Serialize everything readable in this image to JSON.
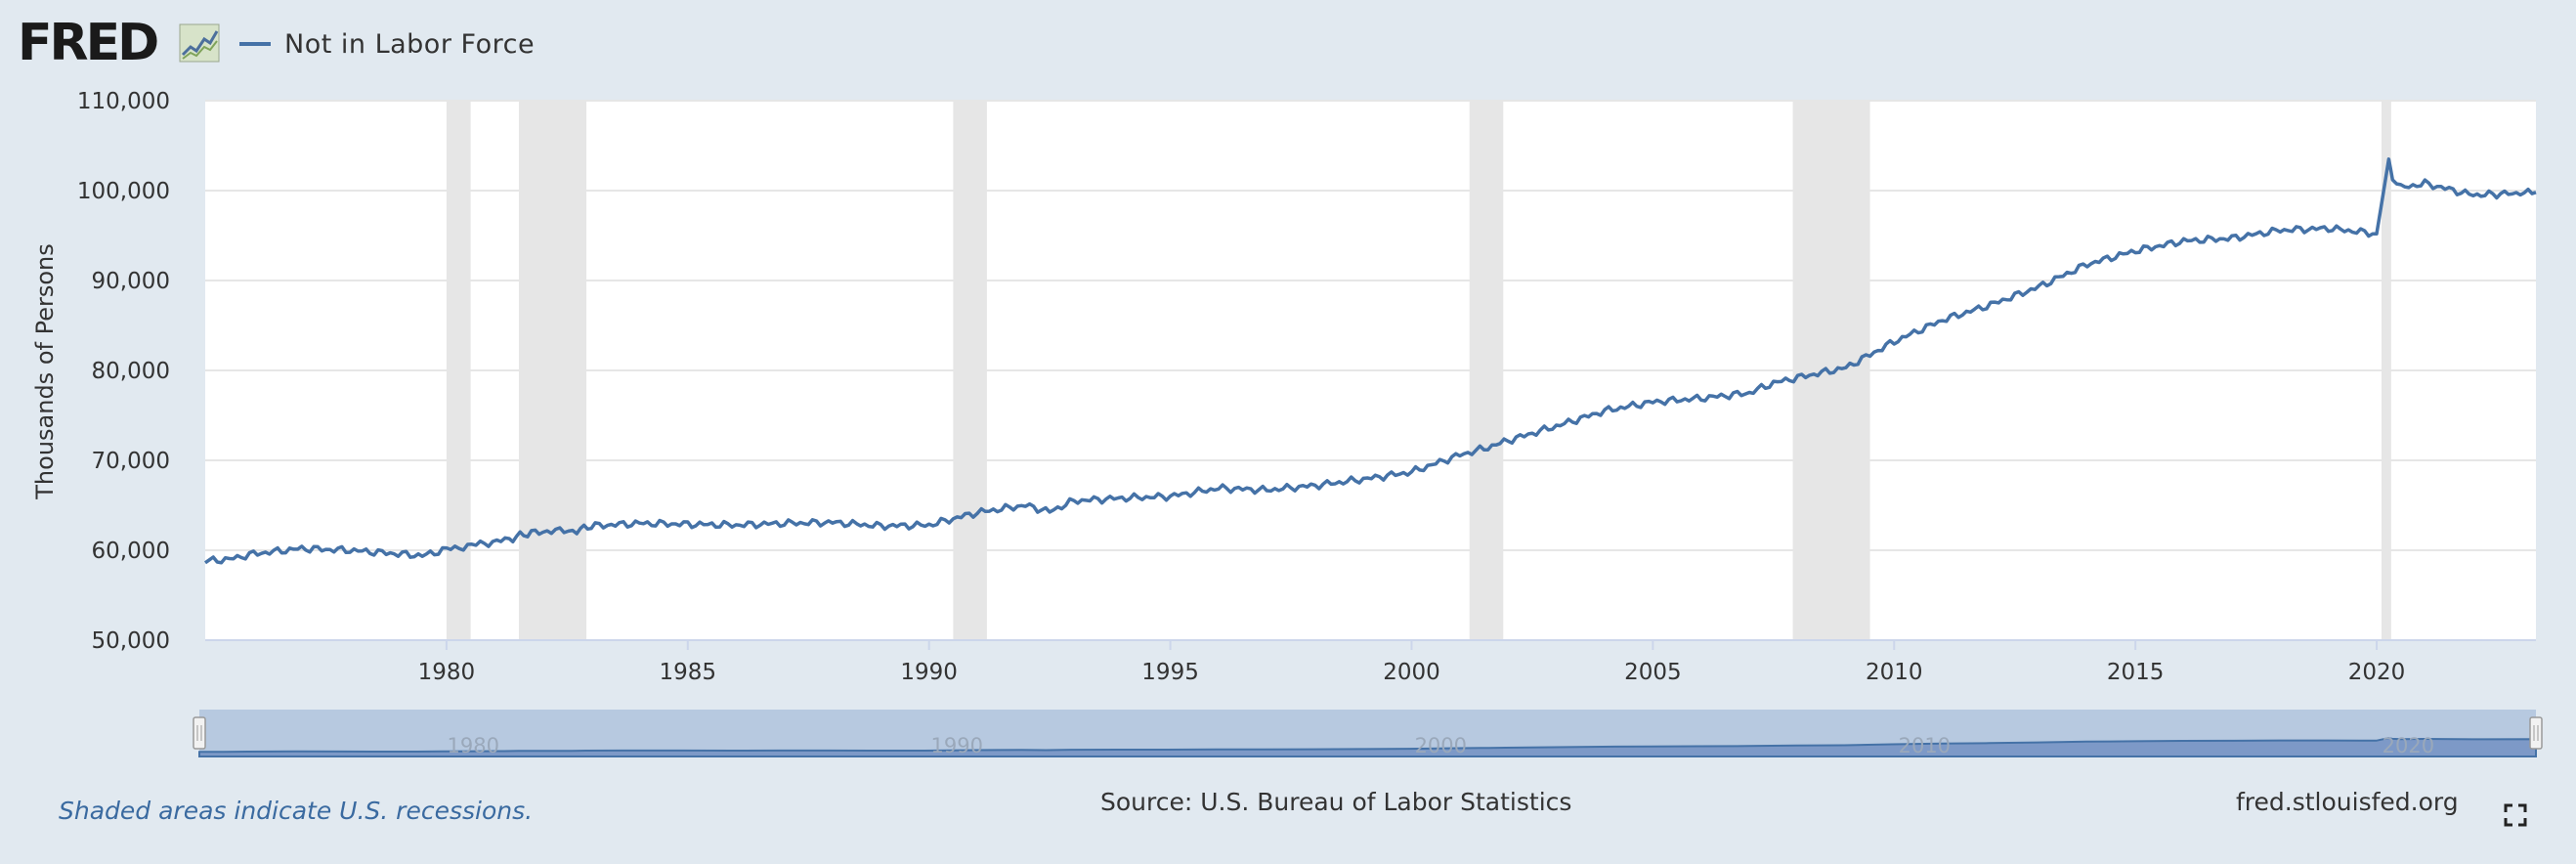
{
  "header": {
    "logo_text": "FRED",
    "logo_icon": "fred-chart-icon",
    "legend_label": "Not in Labor Force",
    "legend_color": "#4572a7"
  },
  "footer": {
    "recession_note": "Shaded areas indicate U.S. recessions.",
    "source": "Source: U.S. Bureau of Labor Statistics",
    "site": "fred.stlouisfed.org",
    "fullscreen_icon": "fullscreen-icon"
  },
  "navigator": {
    "tick_labels": [
      "1980",
      "1990",
      "2000",
      "2010",
      "2020"
    ]
  },
  "chart_data": {
    "type": "line",
    "title": "",
    "xlabel": "",
    "ylabel": "Thousands of Persons",
    "ylim": [
      50000,
      110000
    ],
    "xlim": [
      1975.0,
      2023.3
    ],
    "yticks": [
      50000,
      60000,
      70000,
      80000,
      90000,
      100000,
      110000
    ],
    "ytick_labels": [
      "50,000",
      "60,000",
      "70,000",
      "80,000",
      "90,000",
      "100,000",
      "110,000"
    ],
    "xticks": [
      1980,
      1985,
      1990,
      1995,
      2000,
      2005,
      2010,
      2015,
      2020
    ],
    "xtick_labels": [
      "1980",
      "1985",
      "1990",
      "1995",
      "2000",
      "2005",
      "2010",
      "2015",
      "2020"
    ],
    "grid": true,
    "legend": "top-left",
    "recessions": [
      [
        1980.0,
        1980.5
      ],
      [
        1981.5,
        1982.9
      ],
      [
        1990.5,
        1991.2
      ],
      [
        2001.2,
        2001.9
      ],
      [
        2007.9,
        2009.5
      ],
      [
        2020.1,
        2020.3
      ]
    ],
    "series": [
      {
        "name": "Not in Labor Force",
        "color": "#4572a7",
        "x": [
          1975.0,
          1975.5,
          1976.0,
          1977.0,
          1978.0,
          1979.0,
          1979.5,
          1980.0,
          1980.7,
          1981.3,
          1981.6,
          1982.0,
          1982.7,
          1983.0,
          1984.0,
          1985.0,
          1986.0,
          1987.0,
          1988.0,
          1989.0,
          1990.0,
          1991.0,
          1992.0,
          1992.5,
          1993.0,
          1994.0,
          1995.0,
          1996.0,
          1997.0,
          1998.0,
          1999.0,
          2000.0,
          2001.0,
          2001.5,
          2002.0,
          2003.0,
          2004.0,
          2005.0,
          2006.0,
          2007.0,
          2007.5,
          2008.0,
          2009.0,
          2010.0,
          2011.0,
          2012.0,
          2013.0,
          2014.0,
          2015.0,
          2016.0,
          2017.0,
          2018.0,
          2019.0,
          2020.0,
          2020.25,
          2020.33,
          2020.5,
          2021.0,
          2022.0,
          2023.3
        ],
        "y": [
          58800,
          59000,
          59600,
          60200,
          60000,
          59600,
          59400,
          60100,
          60700,
          61200,
          61800,
          62100,
          62200,
          62700,
          63000,
          62900,
          62800,
          63000,
          63100,
          62700,
          62800,
          64200,
          65000,
          64300,
          65500,
          65800,
          66000,
          66900,
          66700,
          67200,
          67900,
          68700,
          70600,
          71300,
          72200,
          73800,
          75500,
          76500,
          76900,
          77500,
          78600,
          79200,
          80300,
          83200,
          85600,
          87300,
          89300,
          91800,
          93300,
          94400,
          94700,
          95600,
          95800,
          95200,
          103500,
          101200,
          100300,
          100800,
          99500,
          99800
        ]
      }
    ]
  }
}
